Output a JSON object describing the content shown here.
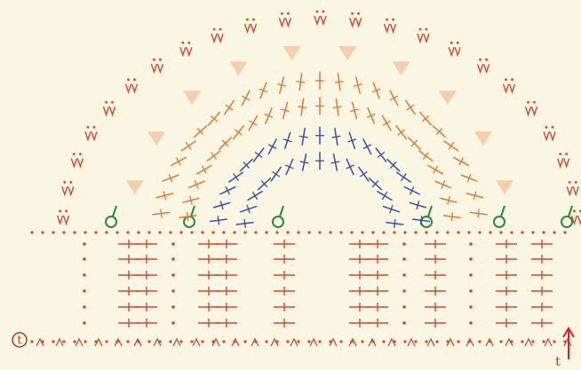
{
  "markers": [
    {
      "label": "t"
    },
    {
      "label": "t"
    }
  ]
}
